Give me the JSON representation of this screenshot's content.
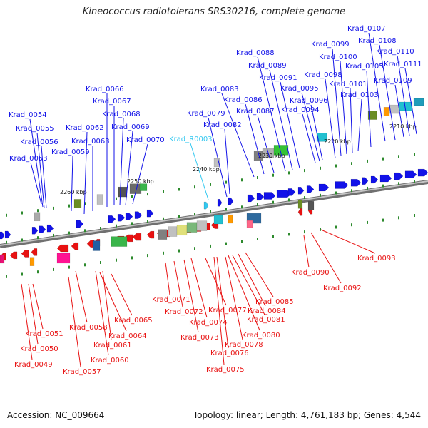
{
  "title": "Kineococcus radiotolerans SRS30216, complete genome",
  "footer": {
    "accession": "Accession: NC_009664",
    "topology": "Topology: linear; Length: 4,761,183 bp; Genes: 4,544"
  },
  "colors": {
    "forward_gene": "#1212e8",
    "reverse_gene": "#e81212",
    "rna_gene": "#33c8f0",
    "backbone": "#909090"
  },
  "scale_labels": [
    "2260 kbp",
    "2250 kbp",
    "2240 kbp",
    "2230 kbp",
    "2220 kbp",
    "2210 kbp"
  ],
  "forward_labels": [
    "Krad_0053",
    "Krad_0054",
    "Krad_0055",
    "Krad_0056",
    "Krad_0059",
    "Krad_0062",
    "Krad_0063",
    "Krad_0066",
    "Krad_0067",
    "Krad_0068",
    "Krad_0069",
    "Krad_0070",
    "Krad_R0003",
    "Krad_0079",
    "Krad_0082",
    "Krad_0083",
    "Krad_0086",
    "Krad_0087",
    "Krad_0088",
    "Krad_0089",
    "Krad_0091",
    "Krad_0094",
    "Krad_0095",
    "Krad_0096",
    "Krad_0098",
    "Krad_0099",
    "Krad_0100",
    "Krad_0101",
    "Krad_0103",
    "Krad_0105",
    "Krad_0107",
    "Krad_0108",
    "Krad_0109",
    "Krad_0110",
    "Krad_0111"
  ],
  "reverse_labels": [
    "Krad_0049",
    "Krad_0050",
    "Krad_0051",
    "Krad_0057",
    "Krad_0058",
    "Krad_0060",
    "Krad_0061",
    "Krad_0064",
    "Krad_0065",
    "Krad_0071",
    "Krad_0072",
    "Krad_0073",
    "Krad_0074",
    "Krad_0075",
    "Krad_0076",
    "Krad_0077",
    "Krad_0078",
    "Krad_0080",
    "Krad_0081",
    "Krad_0084",
    "Krad_0085",
    "Krad_0090",
    "Krad_0092",
    "Krad_0093"
  ]
}
